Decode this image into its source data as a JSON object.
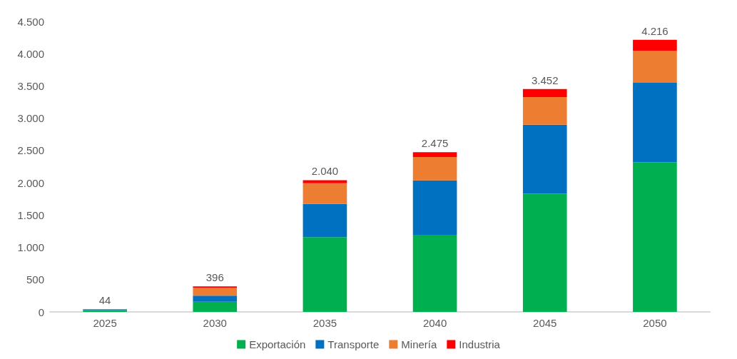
{
  "chart_data": {
    "type": "bar",
    "stacked": true,
    "categories": [
      "2025",
      "2030",
      "2035",
      "2040",
      "2045",
      "2050"
    ],
    "series": [
      {
        "name": "Exportación",
        "color": "#00b050",
        "values": [
          28,
          157,
          1158,
          1193,
          1831,
          2316
        ]
      },
      {
        "name": "Transporte",
        "color": "#0070c0",
        "values": [
          6,
          94,
          513,
          844,
          1068,
          1232
        ]
      },
      {
        "name": "Minería",
        "color": "#ed7d31",
        "values": [
          4,
          126,
          321,
          363,
          429,
          499
        ]
      },
      {
        "name": "Industria",
        "color": "#ff0000",
        "values": [
          6,
          19,
          48,
          75,
          124,
          169
        ]
      }
    ],
    "totals": [
      "44",
      "396",
      "2.040",
      "2.475",
      "3.452",
      "4.216"
    ],
    "ylim": [
      0,
      4500
    ],
    "yticks": [
      {
        "value": 0,
        "label": "0"
      },
      {
        "value": 500,
        "label": "500"
      },
      {
        "value": 1000,
        "label": "1.000"
      },
      {
        "value": 1500,
        "label": "1.500"
      },
      {
        "value": 2000,
        "label": "2.000"
      },
      {
        "value": 2500,
        "label": "2.500"
      },
      {
        "value": 3000,
        "label": "3.000"
      },
      {
        "value": 3500,
        "label": "3.500"
      },
      {
        "value": 4000,
        "label": "4.000"
      },
      {
        "value": 4500,
        "label": "4.500"
      }
    ],
    "grid": false,
    "legend": "bottom"
  }
}
